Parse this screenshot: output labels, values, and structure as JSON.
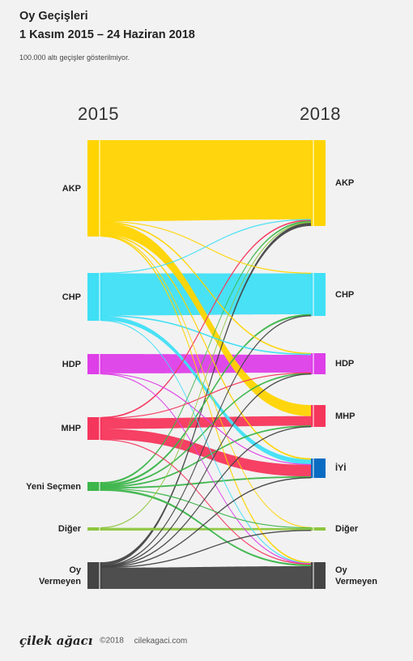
{
  "header": {
    "title_line1": "Oy Geçişleri",
    "title_line2": "1 Kasım 2015 – 24 Haziran 2018",
    "subtitle": "100.000 altı geçişler gösterilmiyor."
  },
  "years": {
    "left": "2015",
    "right": "2018"
  },
  "footer": {
    "brand": "çilek ağacı",
    "copyright": "©2018",
    "site": "cilekagaci.com"
  },
  "colors": {
    "akp": "#FFD400",
    "chp": "#3FDFF5",
    "hdp": "#DE3FE8",
    "mhp": "#F5365C",
    "iyi": "#0A6CC2",
    "yeni": "#3CB54A",
    "diger": "#8DC63F",
    "oyv": "#444444",
    "bg": "#f2f2f2"
  },
  "chart_data": {
    "type": "sankey",
    "title": "Oy Geçişleri",
    "subtitle": "1 Kasım 2015 – 24 Haziran 2018",
    "note": "100.000 altı geçişler gösterilmiyor.",
    "left_nodes": [
      {
        "id": "akp",
        "label": "AKP",
        "color": "#FFD400"
      },
      {
        "id": "chp",
        "label": "CHP",
        "color": "#3FDFF5"
      },
      {
        "id": "hdp",
        "label": "HDP",
        "color": "#DE3FE8"
      },
      {
        "id": "mhp",
        "label": "MHP",
        "color": "#F5365C"
      },
      {
        "id": "yeni",
        "label": "Yeni Seçmen",
        "color": "#3CB54A"
      },
      {
        "id": "diger",
        "label": "Diğer",
        "color": "#8DC63F"
      },
      {
        "id": "oyv",
        "label": "Oy Vermeyen",
        "color": "#444444"
      }
    ],
    "right_nodes": [
      {
        "id": "akp",
        "label": "AKP",
        "color": "#FFD400"
      },
      {
        "id": "chp",
        "label": "CHP",
        "color": "#3FDFF5"
      },
      {
        "id": "hdp",
        "label": "HDP",
        "color": "#DE3FE8"
      },
      {
        "id": "mhp",
        "label": "MHP",
        "color": "#F5365C"
      },
      {
        "id": "iyi",
        "label": "İYİ",
        "color": "#0A6CC2"
      },
      {
        "id": "diger",
        "label": "Diğer",
        "color": "#8DC63F"
      },
      {
        "id": "oyv",
        "label": "Oy Vermeyen",
        "color": "#444444"
      }
    ],
    "flows": [
      {
        "from": "akp",
        "to": "akp",
        "value": 95
      },
      {
        "from": "akp",
        "to": "chp",
        "value": 0.5
      },
      {
        "from": "akp",
        "to": "hdp",
        "value": 1
      },
      {
        "from": "akp",
        "to": "mhp",
        "value": 14
      },
      {
        "from": "akp",
        "to": "iyi",
        "value": 1
      },
      {
        "from": "akp",
        "to": "diger",
        "value": 0.5
      },
      {
        "from": "akp",
        "to": "oyv",
        "value": 1
      },
      {
        "from": "chp",
        "to": "akp",
        "value": 0.5
      },
      {
        "from": "chp",
        "to": "chp",
        "value": 51
      },
      {
        "from": "chp",
        "to": "hdp",
        "value": 1
      },
      {
        "from": "chp",
        "to": "iyi",
        "value": 5
      },
      {
        "from": "chp",
        "to": "oyv",
        "value": 0.5
      },
      {
        "from": "hdp",
        "to": "hdp",
        "value": 22
      },
      {
        "from": "hdp",
        "to": "iyi",
        "value": 0.5
      },
      {
        "from": "hdp",
        "to": "oyv",
        "value": 0.5
      },
      {
        "from": "mhp",
        "to": "akp",
        "value": 1
      },
      {
        "from": "mhp",
        "to": "hdp",
        "value": 0.5
      },
      {
        "from": "mhp",
        "to": "mhp",
        "value": 12
      },
      {
        "from": "mhp",
        "to": "iyi",
        "value": 12
      },
      {
        "from": "mhp",
        "to": "oyv",
        "value": 0.5
      },
      {
        "from": "yeni",
        "to": "akp",
        "value": 2
      },
      {
        "from": "yeni",
        "to": "chp",
        "value": 1.5
      },
      {
        "from": "yeni",
        "to": "hdp",
        "value": 1
      },
      {
        "from": "yeni",
        "to": "mhp",
        "value": 1
      },
      {
        "from": "yeni",
        "to": "iyi",
        "value": 1
      },
      {
        "from": "yeni",
        "to": "diger",
        "value": 0.5
      },
      {
        "from": "yeni",
        "to": "oyv",
        "value": 2
      },
      {
        "from": "diger",
        "to": "akp",
        "value": 0.5
      },
      {
        "from": "diger",
        "to": "diger",
        "value": 3
      },
      {
        "from": "oyv",
        "to": "akp",
        "value": 4
      },
      {
        "from": "oyv",
        "to": "chp",
        "value": 0.5
      },
      {
        "from": "oyv",
        "to": "hdp",
        "value": 0.5
      },
      {
        "from": "oyv",
        "to": "mhp",
        "value": 0.5
      },
      {
        "from": "oyv",
        "to": "iyi",
        "value": 0.5
      },
      {
        "from": "oyv",
        "to": "diger",
        "value": 0.5
      },
      {
        "from": "oyv",
        "to": "oyv",
        "value": 25
      }
    ]
  }
}
